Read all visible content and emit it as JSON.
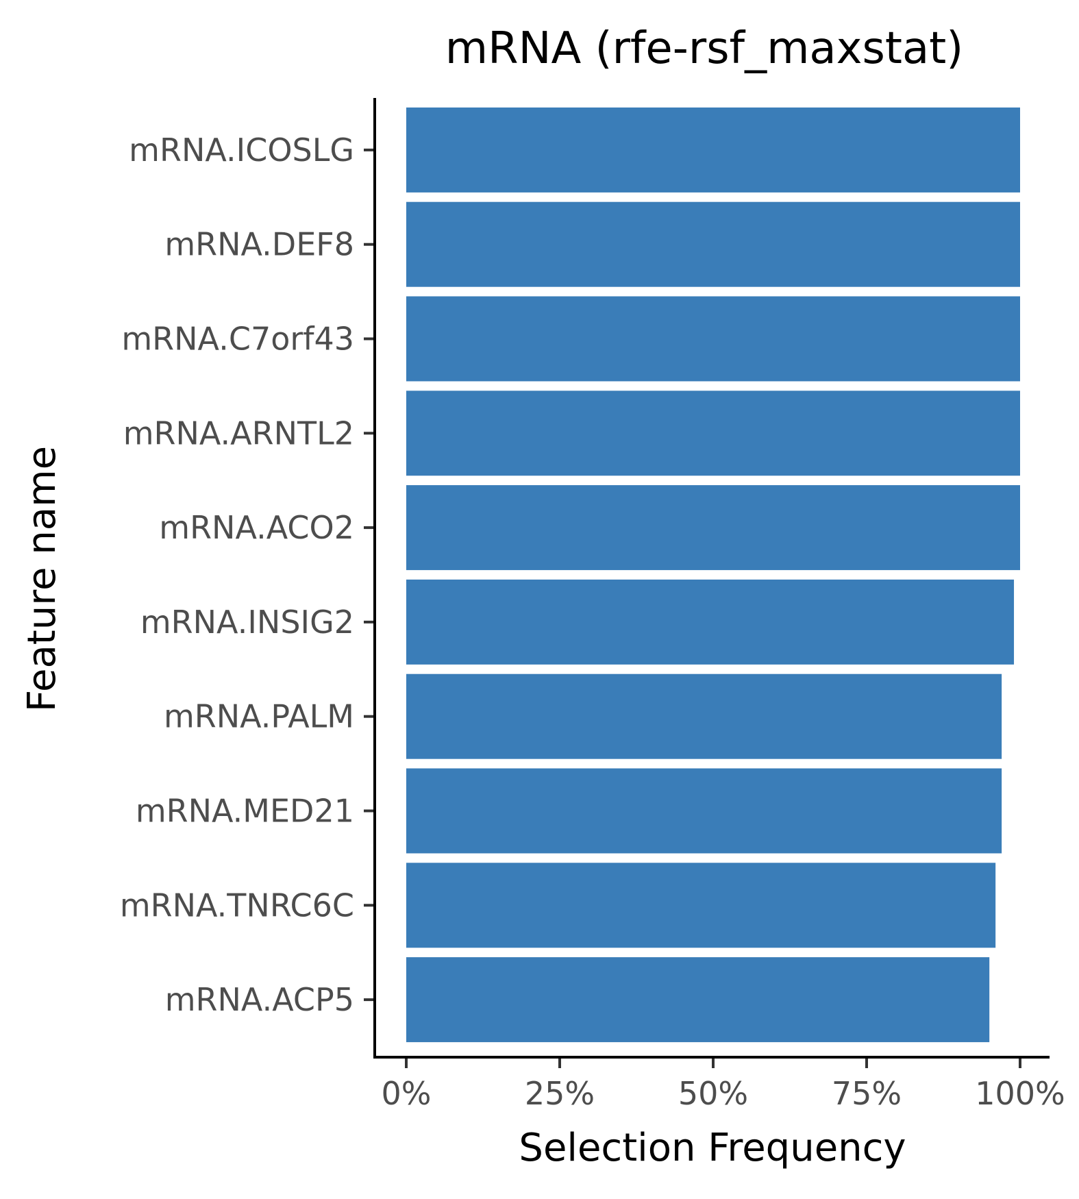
{
  "chart_data": {
    "type": "bar",
    "orientation": "horizontal",
    "title": "mRNA (rfe-rsf_maxstat)",
    "xlabel": "Selection Frequency",
    "ylabel": "Feature name",
    "categories": [
      "mRNA.ICOSLG",
      "mRNA.DEF8",
      "mRNA.C7orf43",
      "mRNA.ARNTL2",
      "mRNA.ACO2",
      "mRNA.INSIG2",
      "mRNA.PALM",
      "mRNA.MED21",
      "mRNA.TNRC6C",
      "mRNA.ACP5"
    ],
    "values": [
      1.0,
      1.0,
      1.0,
      1.0,
      1.0,
      0.99,
      0.97,
      0.97,
      0.96,
      0.95
    ],
    "xlim": [
      0,
      1
    ],
    "x_ticks": [
      0,
      0.25,
      0.5,
      0.75,
      1.0
    ],
    "x_tick_labels": [
      "0%",
      "25%",
      "50%",
      "75%",
      "100%"
    ],
    "bar_color": "#3a7db8",
    "grid": false,
    "legend": "none"
  }
}
